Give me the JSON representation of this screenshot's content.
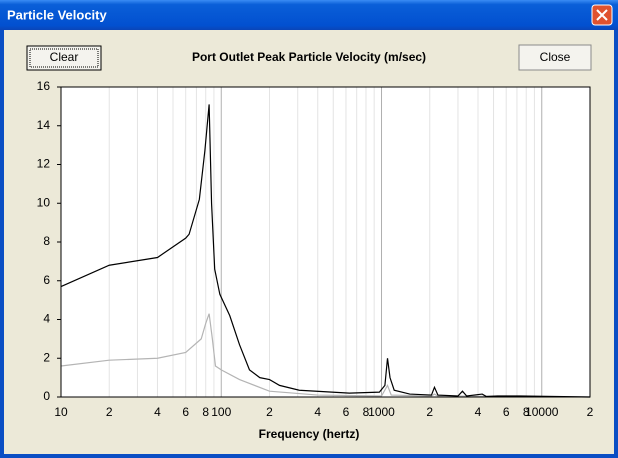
{
  "window": {
    "title": "Particle Velocity"
  },
  "buttons": {
    "clear": "Clear",
    "close": "Close"
  },
  "chart_data": {
    "type": "line",
    "title": "Port Outlet Peak Particle Velocity (m/sec)",
    "x_label": "Frequency (hertz)",
    "log_x": true,
    "xlim": [
      10,
      20000
    ],
    "ylim": [
      0,
      16
    ],
    "yticks": [
      0,
      2,
      4,
      6,
      8,
      10,
      12,
      14,
      16
    ],
    "xticks": [
      10,
      {
        "value": 20,
        "label": "2"
      },
      {
        "value": 40,
        "label": "4"
      },
      {
        "value": 60,
        "label": "6"
      },
      {
        "value": 80,
        "label": "8"
      },
      100,
      {
        "value": 200,
        "label": "2"
      },
      {
        "value": 400,
        "label": "4"
      },
      {
        "value": 600,
        "label": "6"
      },
      {
        "value": 800,
        "label": "8"
      },
      1000,
      {
        "value": 2000,
        "label": "2"
      },
      {
        "value": 4000,
        "label": "4"
      },
      {
        "value": 6000,
        "label": "6"
      },
      {
        "value": 8000,
        "label": "8"
      },
      10000,
      {
        "value": 20000,
        "label": "2"
      }
    ],
    "xminorticks": [
      30,
      50,
      70,
      90,
      300,
      500,
      700,
      900,
      3000,
      5000,
      7000,
      9000
    ],
    "grid": true,
    "series": [
      {
        "color": "#000000",
        "x": [
          10,
          20,
          40,
          60,
          63,
          73,
          79,
          84,
          87,
          91,
          98,
          113,
          130,
          150,
          174,
          200,
          231,
          307,
          630,
          970,
          1050,
          1090,
          1130,
          1200,
          1500,
          2050,
          2140,
          2250,
          3000,
          3200,
          3400,
          4250,
          4500,
          5300,
          6300,
          7300,
          20000
        ],
        "values": [
          5.7,
          6.8,
          7.2,
          8.2,
          8.4,
          10.2,
          12.7,
          15.1,
          10.0,
          6.6,
          5.3,
          4.2,
          2.7,
          1.4,
          1.0,
          0.9,
          0.6,
          0.35,
          0.2,
          0.25,
          0.6,
          2.0,
          1.0,
          0.35,
          0.15,
          0.1,
          0.5,
          0.1,
          0.05,
          0.3,
          0.05,
          0.15,
          0.03,
          0.05,
          0.05,
          0.05,
          0
        ]
      },
      {
        "color": "#b4b4b4",
        "x": [
          10,
          20,
          40,
          60,
          75,
          80,
          84,
          88,
          92,
          100,
          130,
          200,
          400,
          1000,
          1090,
          1150,
          2050,
          2140,
          2250,
          20000
        ],
        "values": [
          1.6,
          1.9,
          2.0,
          2.3,
          3.0,
          3.8,
          4.3,
          3.0,
          1.6,
          1.4,
          0.9,
          0.3,
          0.1,
          0.05,
          0.6,
          0.1,
          0.05,
          0.15,
          0.05,
          0
        ]
      }
    ]
  }
}
